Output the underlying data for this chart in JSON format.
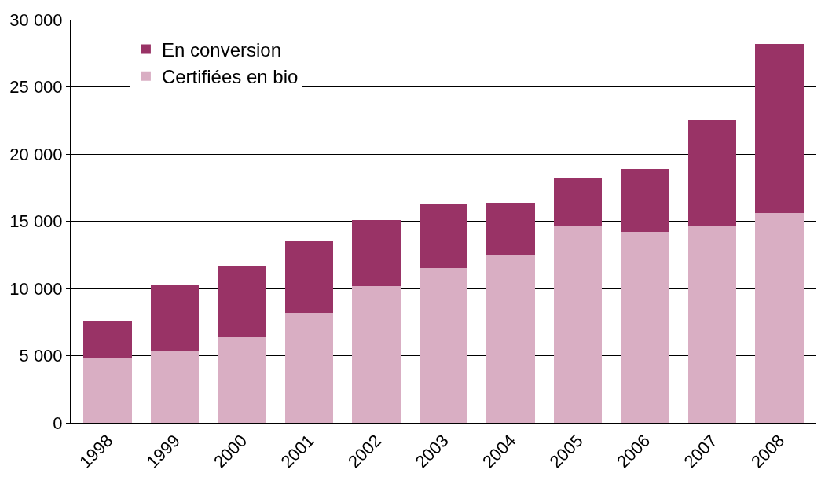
{
  "chart_data": {
    "type": "bar",
    "stacked": true,
    "categories": [
      "1998",
      "1999",
      "2000",
      "2001",
      "2002",
      "2003",
      "2004",
      "2005",
      "2006",
      "2007",
      "2008"
    ],
    "series": [
      {
        "name": "Certifiées en bio",
        "color": "#d9aec3",
        "values": [
          4800,
          5400,
          6400,
          8200,
          10200,
          11500,
          12500,
          14700,
          14200,
          14650,
          15600
        ]
      },
      {
        "name": "En conversion",
        "color": "#993366",
        "values": [
          2800,
          4900,
          5300,
          5300,
          4900,
          4800,
          3900,
          3500,
          4700,
          7850,
          12600
        ]
      }
    ],
    "ylim": [
      0,
      30000
    ],
    "yticks": [
      0,
      {
        "value": 5000,
        "label": "5 000"
      },
      {
        "value": 10000,
        "label": "10 000"
      },
      {
        "value": 15000,
        "label": "15 000"
      },
      {
        "value": 20000,
        "label": "20 000"
      },
      {
        "value": 25000,
        "label": "25 000"
      },
      {
        "value": 30000,
        "label": "30 000"
      }
    ],
    "grid": "y",
    "legend": "top left"
  }
}
